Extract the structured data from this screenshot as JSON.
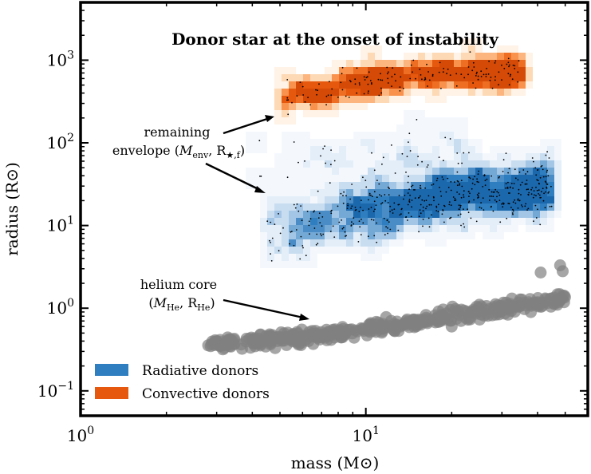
{
  "chart_data": {
    "type": "scatter",
    "title": "Donor star at the onset of instability",
    "xlabel": "mass (M⊙)",
    "ylabel": "radius (R⊙)",
    "xscale": "log",
    "yscale": "log",
    "xlim": [
      1,
      60
    ],
    "ylim": [
      0.05,
      5000
    ],
    "x_ticks": [
      {
        "value": 1,
        "base": "10",
        "exp": "0"
      },
      {
        "value": 10,
        "base": "10",
        "exp": "1"
      }
    ],
    "y_ticks": [
      {
        "value": 0.1,
        "base": "10",
        "exp": "−1"
      },
      {
        "value": 1,
        "base": "10",
        "exp": "0"
      },
      {
        "value": 10,
        "base": "10",
        "exp": "1"
      },
      {
        "value": 100,
        "base": "10",
        "exp": "2"
      },
      {
        "value": 1000,
        "base": "10",
        "exp": "3"
      }
    ],
    "legend": {
      "position": "lower-left",
      "entries": [
        {
          "label": "Radiative donors",
          "color": "#2f7fc0"
        },
        {
          "label": "Convective donors",
          "color": "#e5580d"
        }
      ]
    },
    "annotations": [
      {
        "line1": "remaining",
        "line2_prefix": "envelope (",
        "line2_math": "M",
        "line2_sub": "env",
        "line2_mid": ", R",
        "line2_sub2": "★,f",
        "line2_suffix": ")"
      },
      {
        "line1": "helium core",
        "line2_prefix": "(",
        "line2_math": "M",
        "line2_sub": "He",
        "line2_mid": ", R",
        "line2_sub2": "He",
        "line2_suffix": ")"
      }
    ],
    "series": [
      {
        "name": "Radiative donors",
        "kind": "density-with-points",
        "color": "#2f7fc0",
        "mass_range": [
          4.5,
          45
        ],
        "radius_trend": [
          [
            4.6,
            9
          ],
          [
            7,
            11
          ],
          [
            10,
            14
          ],
          [
            15,
            19
          ],
          [
            20,
            23
          ],
          [
            30,
            28
          ],
          [
            43,
            30
          ]
        ],
        "radius_spread_dex": 0.3,
        "upper_tail": [
          [
            6,
            60
          ],
          [
            10,
            55
          ],
          [
            15,
            110
          ],
          [
            20,
            50
          ]
        ]
      },
      {
        "name": "Convective donors",
        "kind": "density-with-points",
        "color": "#e5580d",
        "mass_range": [
          5,
          35
        ],
        "radius_trend": [
          [
            5,
            350
          ],
          [
            7,
            420
          ],
          [
            10,
            550
          ],
          [
            15,
            650
          ],
          [
            20,
            700
          ],
          [
            30,
            720
          ]
        ],
        "radius_spread_dex": 0.15
      },
      {
        "name": "helium core",
        "kind": "points",
        "color": "#808080",
        "mass_range": [
          2.8,
          50
        ],
        "radius_trend": [
          [
            3,
            0.36
          ],
          [
            6,
            0.45
          ],
          [
            10,
            0.55
          ],
          [
            20,
            0.8
          ],
          [
            30,
            1.0
          ],
          [
            50,
            1.3
          ]
        ],
        "outliers": [
          [
            48,
            3.3
          ],
          [
            49,
            2.8
          ],
          [
            41,
            2.7
          ],
          [
            20,
            0.6
          ],
          [
            25,
            1.1
          ]
        ]
      }
    ]
  }
}
